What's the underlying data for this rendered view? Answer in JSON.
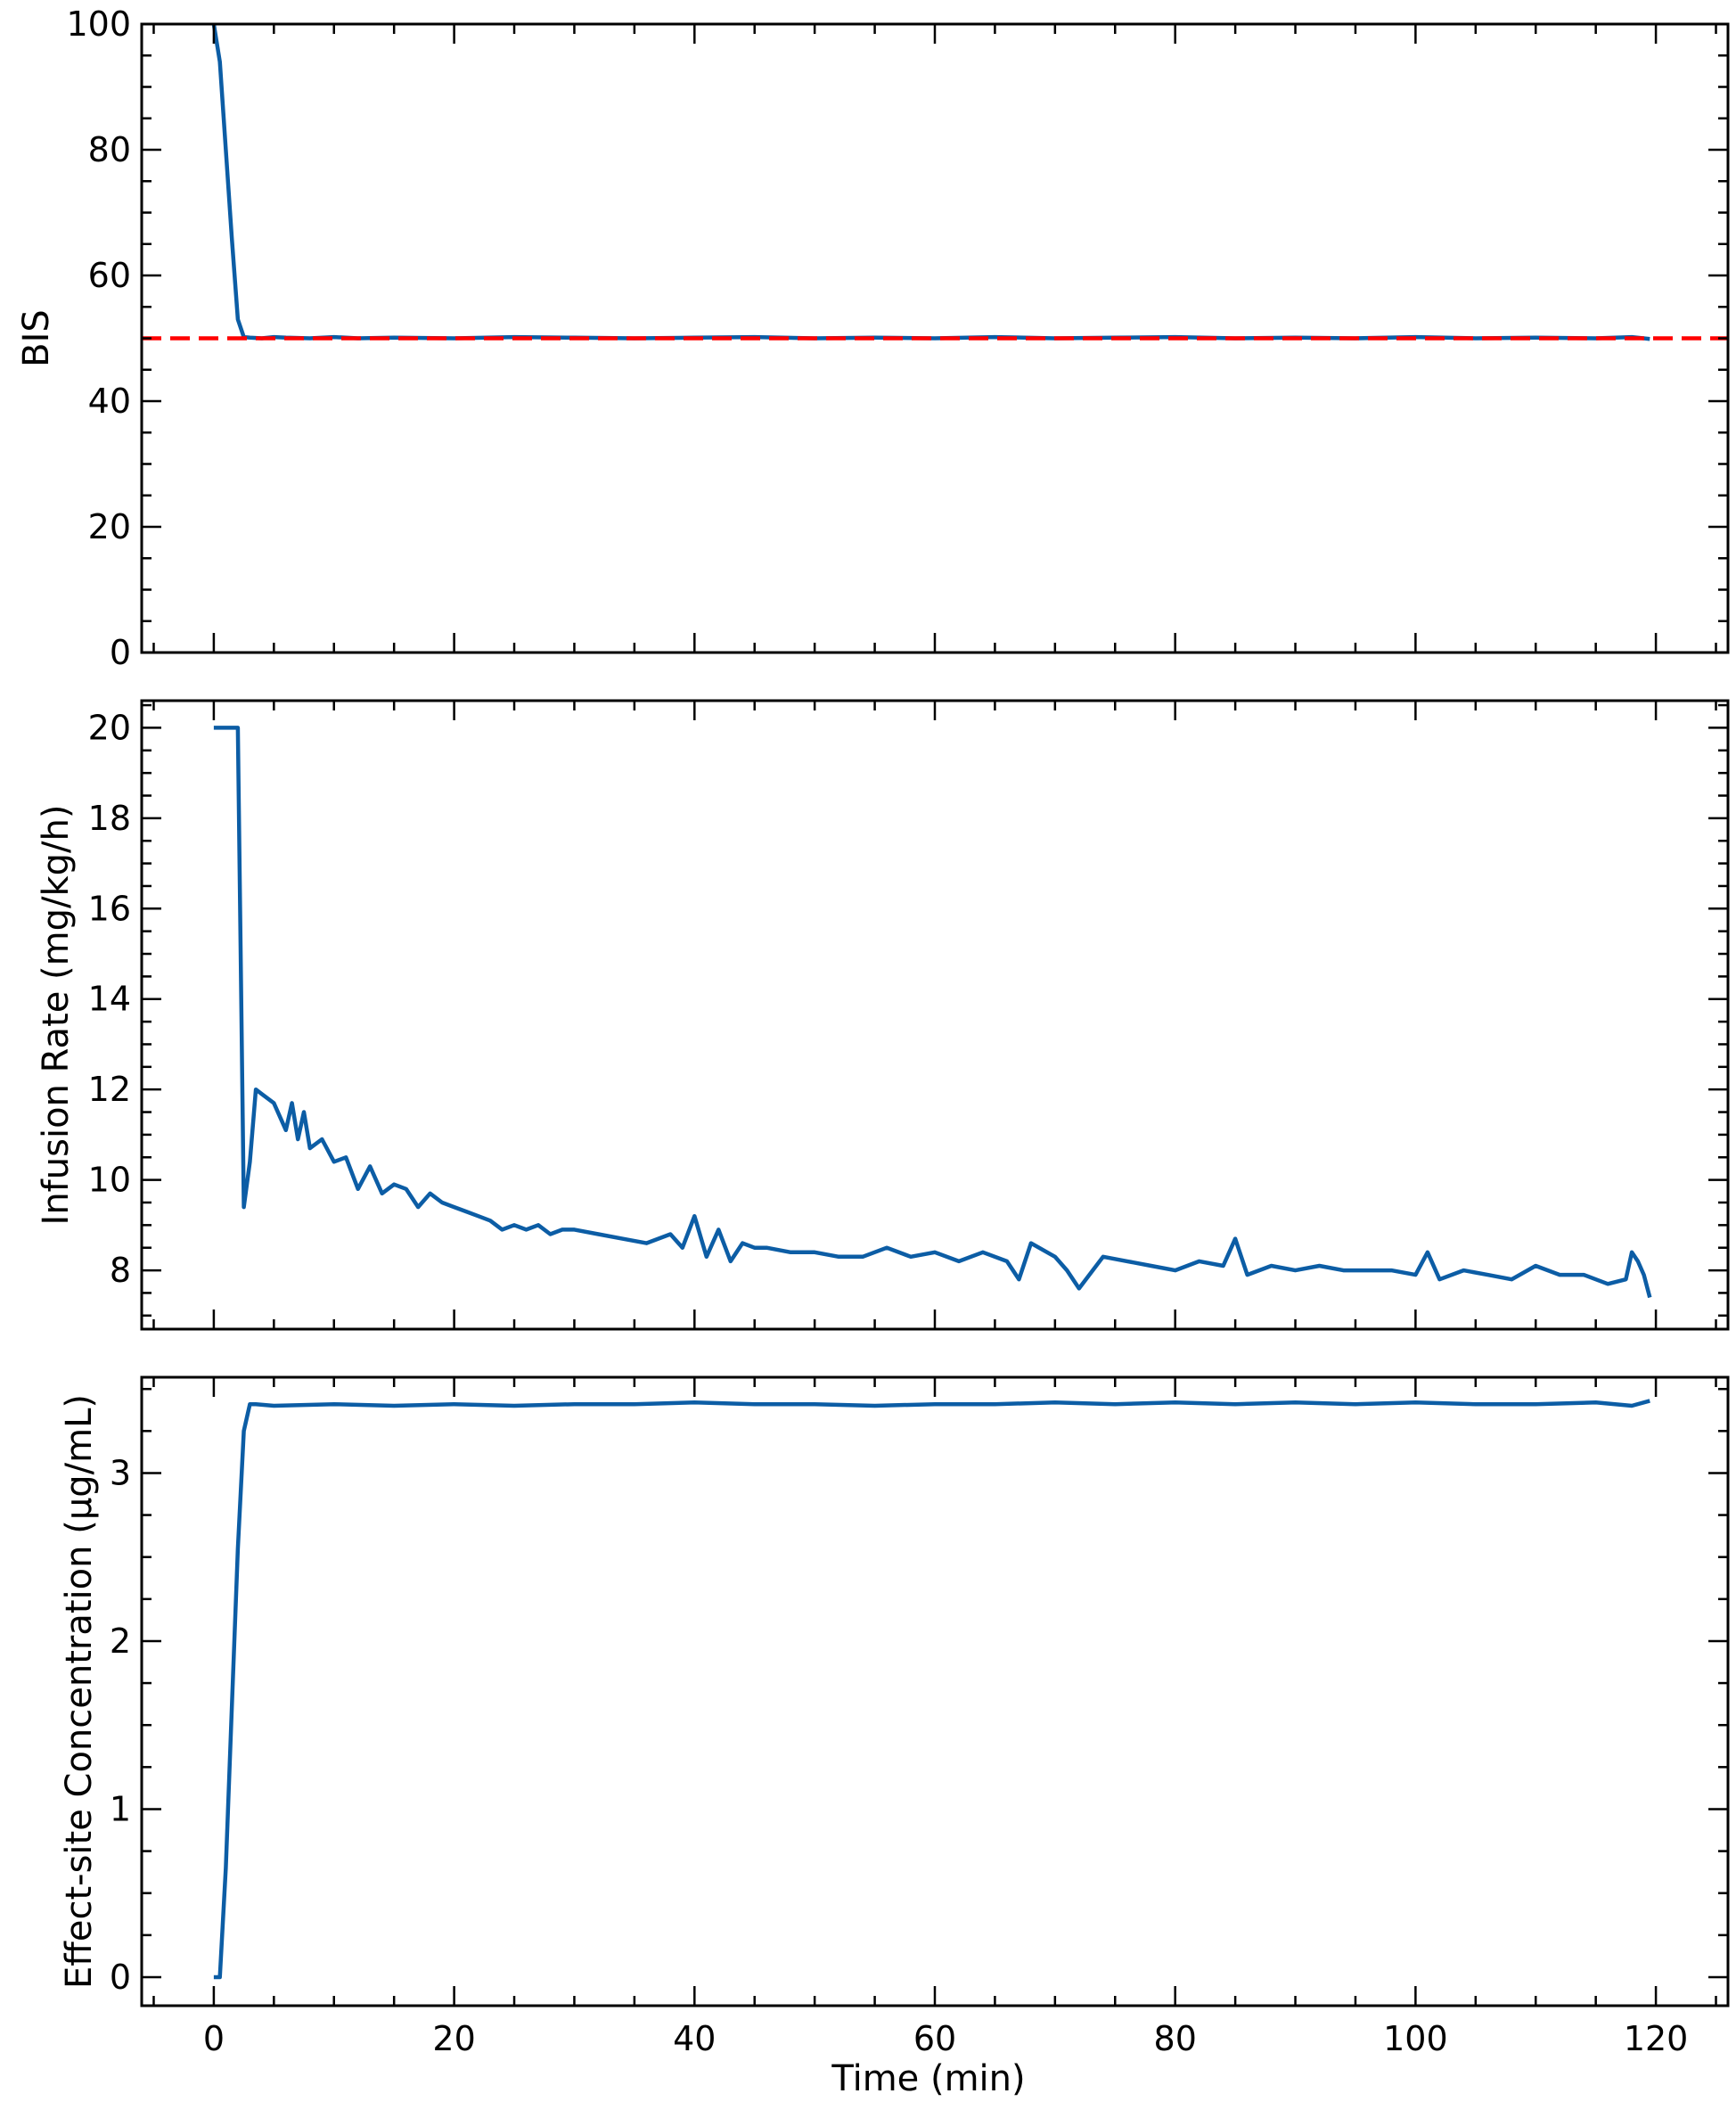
{
  "figure": {
    "line_color": "#0C5DA5",
    "target_color": "#FF0000",
    "xlabel": "Time (min)"
  },
  "chart_data": [
    {
      "type": "line",
      "title": "",
      "xlabel": "",
      "ylabel": "BIS",
      "xlim": [
        -6,
        126
      ],
      "ylim": [
        0,
        100
      ],
      "xticks": [
        0,
        20,
        40,
        60,
        80,
        100,
        120
      ],
      "yticks": [
        0,
        20,
        40,
        60,
        80,
        100
      ],
      "ytick_labels": [
        "0",
        "20",
        "40",
        "60",
        "80",
        "100"
      ],
      "grid": false,
      "series": [
        {
          "name": "BIS",
          "style": "solid",
          "color": "#0C5DA5",
          "x": [
            0,
            0.5,
            1,
            1.5,
            2,
            2.5,
            3,
            4,
            5,
            6,
            8,
            10,
            12,
            15,
            20,
            25,
            30,
            35,
            40,
            45,
            50,
            55,
            60,
            65,
            70,
            75,
            80,
            85,
            90,
            95,
            100,
            105,
            110,
            115,
            118,
            119.5
          ],
          "y": [
            100,
            94,
            80,
            66,
            53,
            50.2,
            50.1,
            50.0,
            50.2,
            50.1,
            50.0,
            50.2,
            50.0,
            50.1,
            50.0,
            50.2,
            50.1,
            50.0,
            50.1,
            50.2,
            50.0,
            50.1,
            50.0,
            50.2,
            50.0,
            50.1,
            50.2,
            50.0,
            50.1,
            50.0,
            50.2,
            50.0,
            50.1,
            50.0,
            50.2,
            49.9
          ]
        },
        {
          "name": "Target BIS",
          "style": "dashed",
          "color": "#FF0000",
          "x": [
            -6,
            126
          ],
          "y": [
            50,
            50
          ]
        }
      ]
    },
    {
      "type": "line",
      "title": "",
      "xlabel": "",
      "ylabel": "Infusion Rate (mg/kg/h)",
      "xlim": [
        -6,
        126
      ],
      "ylim": [
        6.7,
        20.6
      ],
      "xticks": [
        0,
        20,
        40,
        60,
        80,
        100,
        120
      ],
      "yticks": [
        8,
        10,
        12,
        14,
        16,
        18,
        20
      ],
      "ytick_labels": [
        "8",
        "10",
        "12",
        "14",
        "16",
        "18",
        "20"
      ],
      "grid": false,
      "series": [
        {
          "name": "Infusion Rate",
          "style": "solid",
          "color": "#0C5DA5",
          "x": [
            0,
            2,
            2.5,
            3,
            3.5,
            4,
            5,
            6,
            6.5,
            7,
            7.5,
            8,
            9,
            10,
            11,
            12,
            13,
            14,
            15,
            16,
            17,
            18,
            19,
            20,
            21,
            22,
            23,
            24,
            25,
            26,
            27,
            28,
            29,
            30,
            32,
            34,
            36,
            38,
            39,
            40,
            41,
            42,
            43,
            44,
            45,
            46,
            48,
            50,
            52,
            54,
            56,
            58,
            60,
            62,
            64,
            66,
            67,
            68,
            70,
            71,
            72,
            74,
            76,
            78,
            80,
            82,
            84,
            85,
            86,
            88,
            90,
            92,
            94,
            96,
            98,
            100,
            101,
            102,
            104,
            106,
            108,
            110,
            112,
            114,
            116,
            117.5,
            118,
            118.5,
            119,
            119.5
          ],
          "y": [
            20,
            20,
            9.4,
            10.4,
            12.0,
            11.9,
            11.7,
            11.1,
            11.7,
            10.9,
            11.5,
            10.7,
            10.9,
            10.4,
            10.5,
            9.8,
            10.3,
            9.7,
            9.9,
            9.8,
            9.4,
            9.7,
            9.5,
            9.4,
            9.3,
            9.2,
            9.1,
            8.9,
            9.0,
            8.9,
            9.0,
            8.8,
            8.9,
            8.9,
            8.8,
            8.7,
            8.6,
            8.8,
            8.5,
            9.2,
            8.3,
            8.9,
            8.2,
            8.6,
            8.5,
            8.5,
            8.4,
            8.4,
            8.3,
            8.3,
            8.5,
            8.3,
            8.4,
            8.2,
            8.4,
            8.2,
            7.8,
            8.6,
            8.3,
            8.0,
            7.6,
            8.3,
            8.2,
            8.1,
            8.0,
            8.2,
            8.1,
            8.7,
            7.9,
            8.1,
            8.0,
            8.1,
            8.0,
            8.0,
            8.0,
            7.9,
            8.4,
            7.8,
            8.0,
            7.9,
            7.8,
            8.1,
            7.9,
            7.9,
            7.7,
            7.8,
            8.4,
            8.2,
            7.9,
            7.4
          ]
        }
      ]
    },
    {
      "type": "line",
      "title": "",
      "xlabel": "Time (min)",
      "ylabel": "Effect-site Concentration (µg/mL)",
      "xlim": [
        -6,
        126
      ],
      "ylim": [
        -0.17,
        3.57
      ],
      "xticks": [
        0,
        20,
        40,
        60,
        80,
        100,
        120
      ],
      "xtick_labels": [
        "0",
        "20",
        "40",
        "60",
        "80",
        "100",
        "120"
      ],
      "yticks": [
        0,
        1,
        2,
        3
      ],
      "ytick_labels": [
        "0",
        "1",
        "2",
        "3"
      ],
      "grid": false,
      "series": [
        {
          "name": "Effect-site Concentration",
          "style": "solid",
          "color": "#0C5DA5",
          "x": [
            0,
            0.5,
            1,
            1.5,
            2,
            2.5,
            3,
            3.5,
            5,
            10,
            15,
            20,
            25,
            30,
            35,
            40,
            45,
            50,
            55,
            60,
            65,
            70,
            75,
            80,
            85,
            90,
            95,
            100,
            105,
            110,
            115,
            118,
            119.5
          ],
          "y": [
            0,
            0,
            0.65,
            1.6,
            2.55,
            3.25,
            3.41,
            3.41,
            3.4,
            3.41,
            3.4,
            3.41,
            3.4,
            3.41,
            3.41,
            3.42,
            3.41,
            3.41,
            3.4,
            3.41,
            3.41,
            3.42,
            3.41,
            3.42,
            3.41,
            3.42,
            3.41,
            3.42,
            3.41,
            3.41,
            3.42,
            3.4,
            3.43
          ]
        }
      ]
    }
  ]
}
